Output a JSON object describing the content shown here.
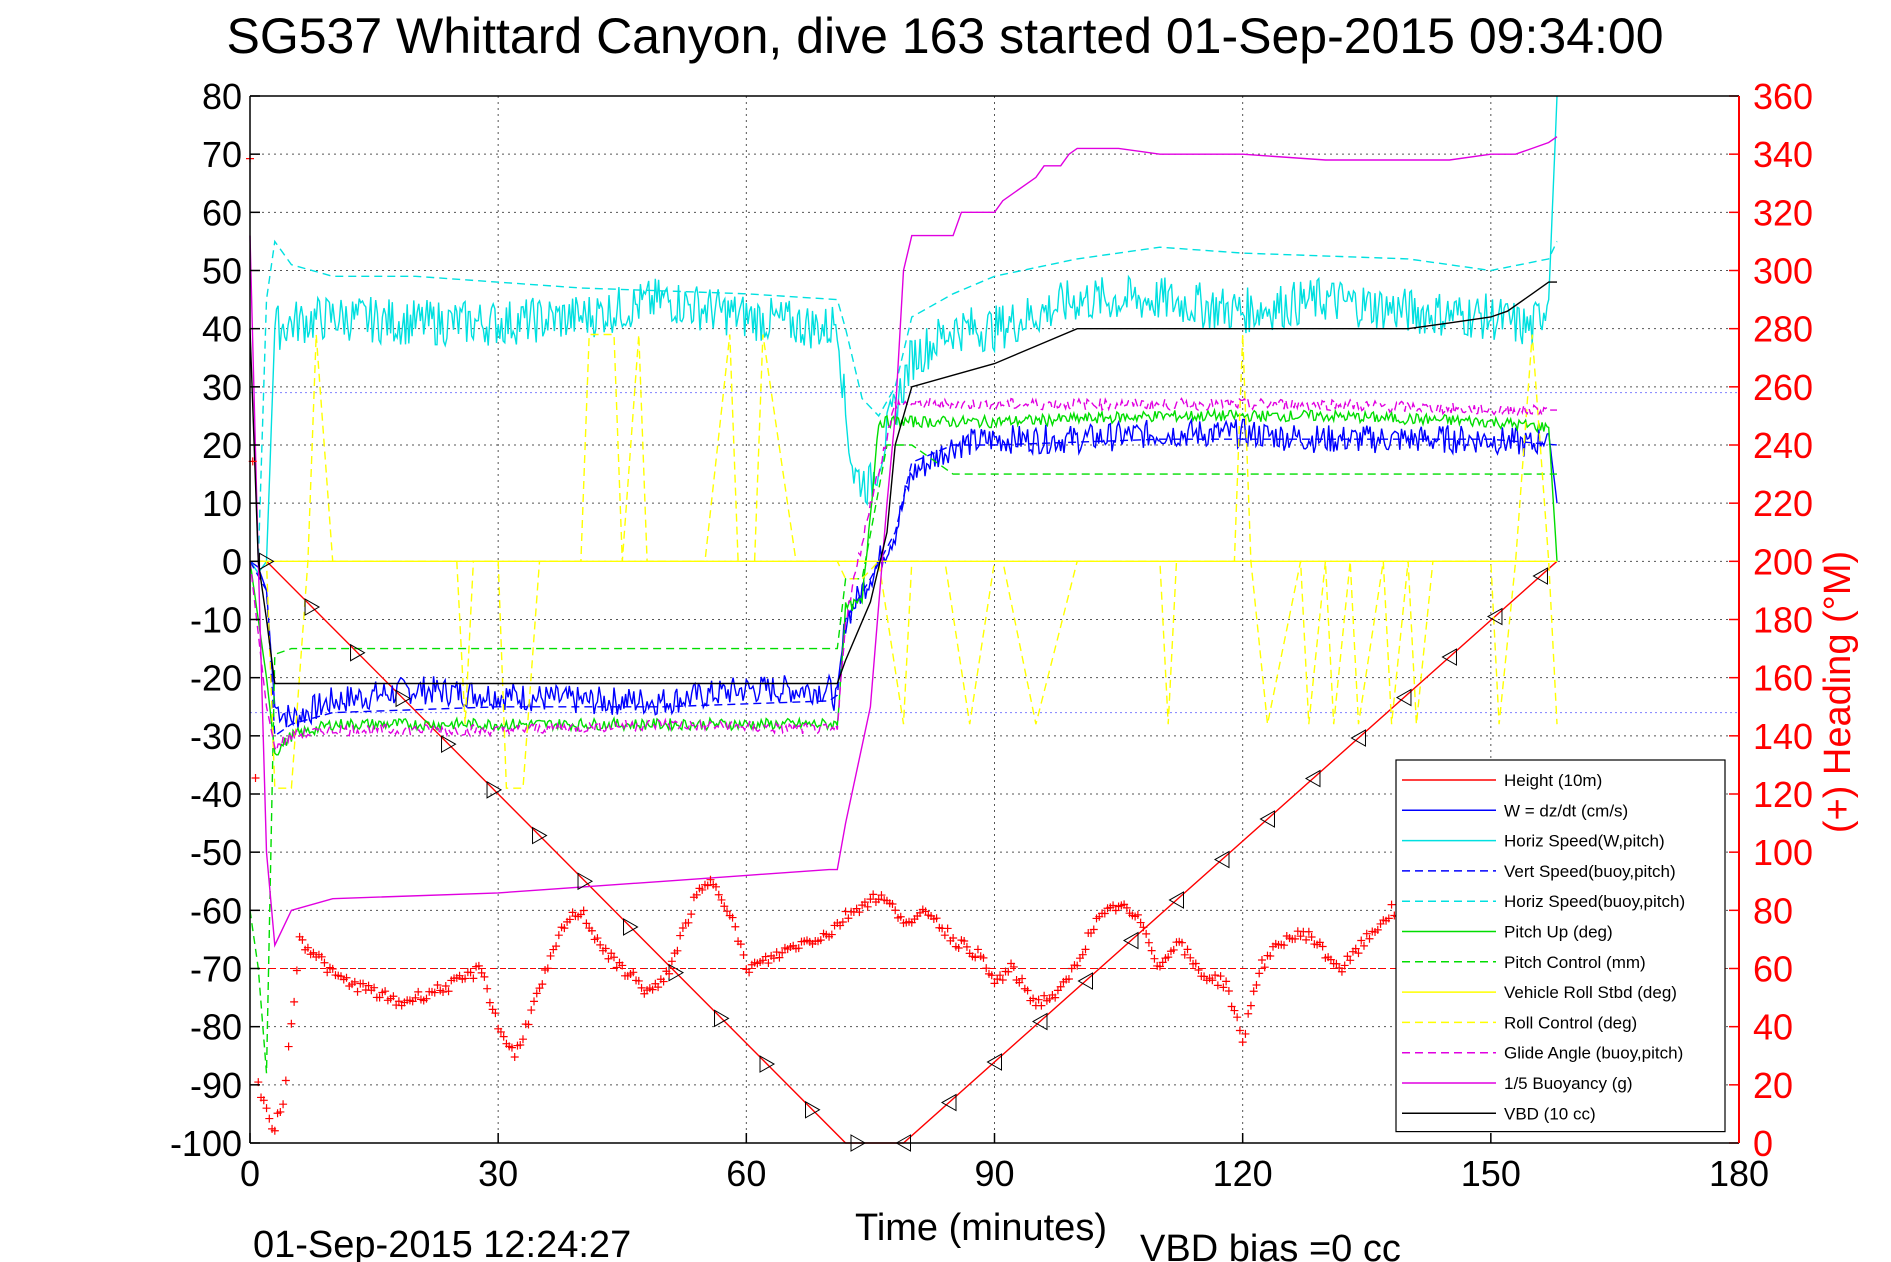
{
  "chart_data": {
    "type": "line",
    "title": "SG537 Whittard Canyon, dive 163 started 01-Sep-2015 09:34:00",
    "xlabel": "Time (minutes)",
    "ylabel": "",
    "ylabel_right": "(+) Heading (°M)",
    "xlim": [
      0,
      180
    ],
    "ylim": [
      -100,
      80
    ],
    "ylim_right": [
      0,
      360
    ],
    "xticks": [
      "0",
      "30",
      "60",
      "90",
      "120",
      "150",
      "180"
    ],
    "yticks": [
      "80",
      "70",
      "60",
      "50",
      "40",
      "30",
      "20",
      "10",
      "0",
      "-10",
      "-20",
      "-30",
      "-40",
      "-50",
      "-60",
      "-70",
      "-80",
      "-90",
      "-100"
    ],
    "yticks_right": [
      "360",
      "340",
      "320",
      "300",
      "280",
      "260",
      "240",
      "220",
      "200",
      "180",
      "160",
      "140",
      "120",
      "100",
      "80",
      "60",
      "40",
      "20",
      "0"
    ],
    "grid": true,
    "legend_position": "bottom-right",
    "footer_left": "01-Sep-2015 12:24:27",
    "footer_right": "VBD bias =0 cc",
    "series": [
      {
        "name": "Height (10m)",
        "color": "#ff0000",
        "style": "solid",
        "x": [
          0,
          2,
          72,
          79,
          158
        ],
        "y": [
          0,
          0,
          -100,
          -100,
          0
        ]
      },
      {
        "name": "W = dz/dt (cm/s)",
        "color": "#0000ff",
        "style": "solid",
        "x": [
          0,
          1,
          2,
          3,
          5,
          10,
          20,
          30,
          40,
          50,
          60,
          70,
          71,
          72,
          74,
          76,
          78,
          80,
          85,
          90,
          100,
          110,
          120,
          130,
          140,
          150,
          155,
          157,
          158
        ],
        "y": [
          0,
          -1,
          -5,
          -25,
          -27,
          -24,
          -22,
          -23,
          -24,
          -24,
          -22,
          -22,
          -24,
          -10,
          -5,
          0,
          5,
          15,
          20,
          21,
          21,
          22,
          22,
          21,
          21,
          21,
          20,
          22,
          10
        ]
      },
      {
        "name": "Horiz Speed(W,pitch)",
        "color": "#00e0e0",
        "style": "solid",
        "x": [
          0,
          1,
          2,
          3,
          5,
          10,
          20,
          30,
          40,
          50,
          60,
          70,
          71,
          72,
          73,
          75,
          77,
          80,
          85,
          90,
          100,
          110,
          120,
          130,
          140,
          150,
          155,
          157,
          158
        ],
        "y": [
          0,
          -2,
          0,
          40,
          41,
          42,
          41,
          41,
          42,
          45,
          42,
          40,
          42,
          25,
          15,
          13,
          22,
          35,
          40,
          40,
          45,
          45,
          43,
          45,
          43,
          42,
          40,
          45,
          80
        ]
      },
      {
        "name": "Vert Speed(buoy,pitch)",
        "color": "#0000ff",
        "style": "dashed",
        "x": [
          0,
          2,
          3,
          5,
          10,
          30,
          50,
          70,
          71,
          72,
          75,
          78,
          80,
          85,
          90,
          110,
          130,
          150,
          158
        ],
        "y": [
          0,
          -5,
          -30,
          -28,
          -26,
          -25,
          -25,
          -24,
          -23,
          -10,
          -3,
          5,
          17,
          20,
          20,
          21,
          21,
          21,
          20
        ]
      },
      {
        "name": "Horiz Speed(buoy,pitch)",
        "color": "#00e0e0",
        "style": "dashed",
        "x": [
          0,
          1,
          2,
          3,
          5,
          10,
          20,
          40,
          60,
          71,
          72,
          74,
          76,
          78,
          80,
          85,
          90,
          100,
          110,
          120,
          140,
          150,
          157,
          158
        ],
        "y": [
          0,
          0,
          45,
          55,
          51,
          49,
          49,
          47,
          46,
          45,
          40,
          28,
          25,
          30,
          42,
          46,
          49,
          52,
          54,
          53,
          52,
          50,
          52,
          55
        ]
      },
      {
        "name": "Pitch Up (deg)",
        "color": "#00dd00",
        "style": "solid",
        "x": [
          0,
          2,
          3,
          5,
          10,
          30,
          50,
          71,
          72,
          74,
          76,
          78,
          80,
          90,
          110,
          130,
          150,
          157,
          158
        ],
        "y": [
          0,
          -20,
          -33,
          -30,
          -28,
          -28,
          -28,
          -28,
          -8,
          -7,
          24,
          24,
          24,
          24,
          25,
          25,
          24,
          23,
          0
        ]
      },
      {
        "name": "Pitch Control (mm)",
        "color": "#00dd00",
        "style": "dashed",
        "x": [
          0,
          1,
          2,
          3,
          5,
          10,
          71,
          72,
          74,
          77,
          80,
          85,
          90,
          130,
          158
        ],
        "y": [
          -60,
          -70,
          -88,
          -16,
          -15,
          -15,
          -15,
          -3,
          -3,
          20,
          20,
          15,
          15,
          15,
          15
        ]
      },
      {
        "name": "Vehicle Roll Stbd (deg)",
        "color": "#ffff00",
        "style": "solid",
        "x": [
          0,
          158
        ],
        "y": [
          0,
          0
        ]
      },
      {
        "name": "Roll Control (deg)",
        "color": "#ffff00",
        "style": "dashed",
        "x": [
          0,
          2,
          3,
          5,
          7,
          8,
          10,
          25,
          26,
          27,
          30,
          31,
          33,
          35,
          40,
          41,
          44,
          45,
          47,
          48,
          55,
          58,
          59,
          61,
          62,
          66,
          71,
          72,
          74,
          76,
          79,
          80,
          84,
          87,
          90,
          91,
          95,
          100,
          110,
          111,
          112,
          115,
          119,
          120,
          121,
          123,
          127,
          128,
          130,
          131,
          133,
          134,
          137,
          138,
          140,
          141,
          143,
          150,
          151,
          153,
          155,
          157,
          158
        ],
        "y": [
          0,
          0,
          -39,
          -39,
          0,
          39,
          0,
          0,
          -28,
          0,
          0,
          -39,
          -39,
          0,
          0,
          39,
          39,
          0,
          39,
          0,
          0,
          39,
          0,
          0,
          39,
          0,
          0,
          -3,
          -3,
          0,
          -28,
          0,
          0,
          -28,
          0,
          0,
          -28,
          0,
          0,
          -28,
          0,
          0,
          0,
          39,
          0,
          -28,
          0,
          -28,
          0,
          -28,
          0,
          -28,
          0,
          -28,
          0,
          -28,
          0,
          0,
          -28,
          0,
          39,
          0,
          -28
        ]
      },
      {
        "name": "Glide Angle (buoy,pitch)",
        "color": "#e000e0",
        "style": "dashed",
        "x": [
          0,
          2,
          3,
          5,
          10,
          30,
          50,
          71,
          72,
          75,
          78,
          80,
          90,
          110,
          130,
          150,
          158
        ],
        "y": [
          0,
          -25,
          -32,
          -30,
          -29,
          -29,
          -28,
          -29,
          -10,
          10,
          27,
          27,
          27,
          27,
          27,
          26,
          26
        ]
      },
      {
        "name": "1/5 Buoyancy (g)",
        "color": "#e000e0",
        "style": "solid",
        "x": [
          0,
          1,
          2,
          3,
          5,
          10,
          30,
          50,
          60,
          70,
          71,
          72,
          75,
          77,
          78,
          79,
          80,
          85,
          86,
          90,
          91,
          95,
          96,
          98,
          99,
          100,
          105,
          110,
          120,
          130,
          140,
          145,
          150,
          153,
          155,
          157,
          158
        ],
        "y": [
          56,
          0,
          -50,
          -66,
          -60,
          -58,
          -57,
          -55,
          -54,
          -53,
          -53,
          -45,
          -25,
          10,
          25,
          50,
          56,
          56,
          60,
          60,
          62,
          66,
          68,
          68,
          70,
          71,
          71,
          70,
          70,
          69,
          69,
          69,
          70,
          70,
          71,
          72,
          73
        ]
      },
      {
        "name": "VBD (10 cc)",
        "color": "#000000",
        "style": "solid",
        "x": [
          0,
          1,
          2,
          3,
          71,
          72,
          75,
          77,
          78,
          79,
          80,
          85,
          90,
          95,
          100,
          110,
          120,
          140,
          145,
          150,
          152,
          155,
          157,
          158
        ],
        "y": [
          40,
          0,
          -10,
          -21,
          -21,
          -17,
          -7,
          5,
          20,
          25,
          30,
          32,
          34,
          37,
          40,
          40,
          40,
          40,
          41,
          42,
          43,
          46,
          48,
          48
        ]
      }
    ],
    "heading": {
      "name": "Heading",
      "color": "#ff0000",
      "mean": 60,
      "x": [
        0,
        1,
        2,
        3,
        4,
        5,
        6,
        8,
        10,
        12,
        15,
        18,
        20,
        22,
        25,
        28,
        30,
        32,
        34,
        36,
        38,
        40,
        42,
        44,
        46,
        48,
        50,
        52,
        54,
        56,
        58,
        60,
        62,
        64,
        66,
        68,
        70,
        72,
        74,
        76,
        78,
        80,
        82,
        85,
        88,
        90,
        92,
        95,
        98,
        100,
        102,
        105,
        108,
        110,
        112,
        115,
        118,
        120,
        122,
        125,
        128,
        130,
        132,
        135,
        138,
        140
      ],
      "y": [
        340,
        20,
        10,
        5,
        15,
        40,
        70,
        65,
        58,
        55,
        52,
        48,
        50,
        52,
        55,
        60,
        40,
        30,
        45,
        60,
        75,
        80,
        70,
        62,
        58,
        52,
        55,
        70,
        85,
        90,
        80,
        60,
        62,
        65,
        68,
        70,
        72,
        78,
        82,
        85,
        80,
        75,
        80,
        70,
        65,
        55,
        60,
        48,
        52,
        62,
        75,
        82,
        75,
        60,
        70,
        58,
        55,
        35,
        60,
        70,
        72,
        65,
        60,
        70,
        80,
        68
      ]
    }
  }
}
